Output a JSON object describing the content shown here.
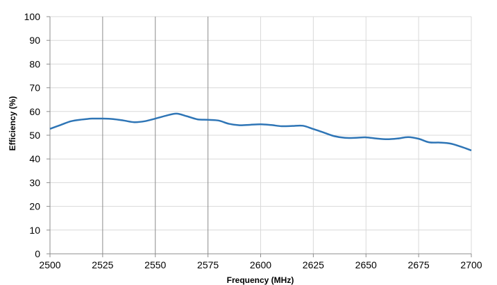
{
  "chart_data": {
    "type": "line",
    "title": "",
    "xlabel": "Frequency (MHz)",
    "ylabel": "Efficiency (%)",
    "xlim": [
      2500,
      2700
    ],
    "ylim": [
      0,
      100
    ],
    "x_ticks": [
      2500,
      2525,
      2550,
      2575,
      2600,
      2625,
      2650,
      2675,
      2700
    ],
    "y_ticks": [
      0,
      10,
      20,
      30,
      40,
      50,
      60,
      70,
      80,
      90,
      100
    ],
    "grid": true,
    "legend": "none",
    "series": [
      {
        "color": "#2e75b6",
        "x": [
          2500,
          2505,
          2510,
          2515,
          2520,
          2525,
          2530,
          2535,
          2540,
          2545,
          2550,
          2555,
          2560,
          2565,
          2570,
          2575,
          2580,
          2585,
          2590,
          2595,
          2600,
          2605,
          2610,
          2615,
          2620,
          2625,
          2630,
          2635,
          2640,
          2645,
          2650,
          2655,
          2660,
          2665,
          2670,
          2675,
          2680,
          2685,
          2690,
          2695,
          2700
        ],
        "y": [
          52.7,
          54.3,
          55.9,
          56.6,
          57.0,
          57.0,
          56.8,
          56.2,
          55.5,
          55.9,
          57.0,
          58.2,
          59.1,
          58.0,
          56.7,
          56.5,
          56.2,
          54.8,
          54.2,
          54.4,
          54.6,
          54.3,
          53.8,
          53.9,
          54.0,
          52.6,
          51.1,
          49.6,
          48.9,
          48.9,
          49.1,
          48.6,
          48.3,
          48.6,
          49.2,
          48.5,
          47.0,
          46.9,
          46.5,
          45.2,
          43.6
        ]
      }
    ]
  }
}
